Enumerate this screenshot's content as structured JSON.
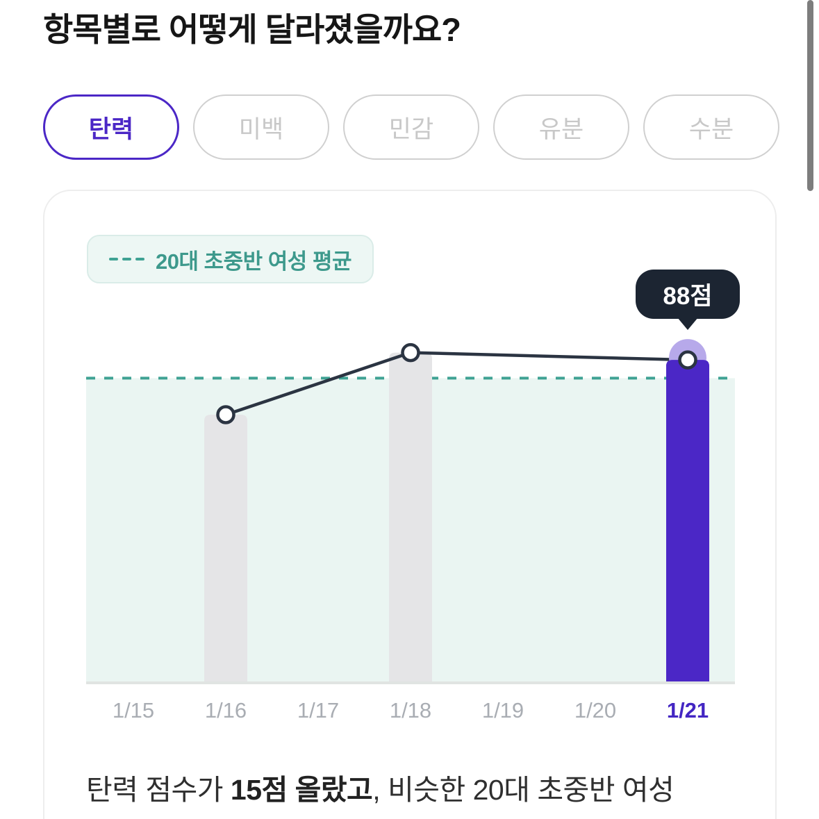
{
  "page": {
    "title": "항목별로 어떻게 달라졌을까요?"
  },
  "tabs": [
    {
      "label": "탄력",
      "selected": true
    },
    {
      "label": "미백",
      "selected": false
    },
    {
      "label": "민감",
      "selected": false
    },
    {
      "label": "유분",
      "selected": false
    },
    {
      "label": "수분",
      "selected": false
    }
  ],
  "chart_card": {
    "legend": {
      "label": "20대 초중반 여성 평균"
    },
    "tooltip": {
      "label": "88점"
    },
    "summary": {
      "prefix": "탄력 점수가 ",
      "bold": "15점 올랐고",
      "suffix": ", 비슷한 20대 초중반 여성"
    }
  },
  "chart_data": {
    "type": "bar",
    "title": "탄력 점수 추이",
    "categories": [
      "1/15",
      "1/16",
      "1/17",
      "1/18",
      "1/19",
      "1/20",
      "1/21"
    ],
    "series": [
      {
        "name": "탄력 점수",
        "values": [
          null,
          73,
          null,
          90,
          null,
          null,
          88
        ]
      }
    ],
    "average_line": {
      "label": "20대 초중반 여성 평균",
      "value": 83,
      "style": "dashed"
    },
    "highlight_index": 6,
    "highlight_value_label": "88점",
    "ylim": [
      0,
      100
    ],
    "xlabel": "",
    "ylabel": "",
    "grid": false,
    "legend_position": "top-left",
    "colors": {
      "bar_default": "#e5e5e7",
      "bar_highlight": "#4b27c6",
      "line": "#2b3442",
      "point_fill": "#ffffff",
      "point_halo": "#b7a9ea",
      "average_line": "#3fa293",
      "below_average_fill": "#eaf5f2",
      "baseline": "#e0e4e2",
      "label_default": "#a9adb3",
      "label_highlight": "#4326c3"
    }
  }
}
